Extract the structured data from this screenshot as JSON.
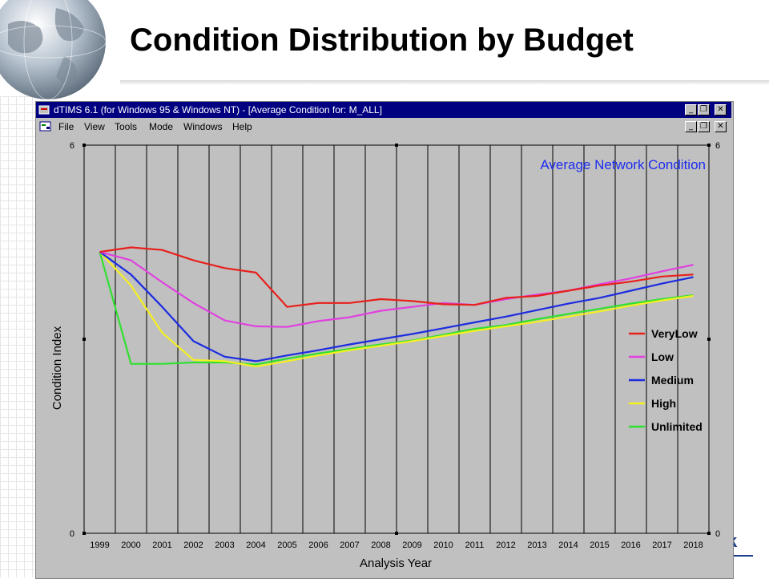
{
  "slide": {
    "title": "Condition Distribution by Budget",
    "logo_fragment": "k"
  },
  "window": {
    "title": "dTIMS 6.1 (for Windows 95 & Windows NT) - [Average Condition for: M_ALL]",
    "buttons": {
      "minimize": "_",
      "restore": "❐",
      "close": "✕"
    },
    "menu": [
      "File",
      "View",
      "Tools",
      "Mode",
      "Windows",
      "Help"
    ]
  },
  "colors": {
    "titlebar": "#000080",
    "chart_bg": "#c0c0c0",
    "VeryLow": "#e8201c",
    "Low": "#e040e0",
    "Medium": "#1c2ce0",
    "High": "#f4f020",
    "Unlimited": "#30e030",
    "annotation": "#1c2cf0"
  },
  "chart_data": {
    "type": "line",
    "annotation": "Average Network Condition",
    "xlabel": "Analysis Year",
    "ylabel": "Condition Index",
    "ylim": [
      0,
      6
    ],
    "yticks_left": [
      "0",
      "6"
    ],
    "yticks_right": [
      "0",
      "6"
    ],
    "x": [
      "1999",
      "2000",
      "2001",
      "2002",
      "2003",
      "2004",
      "2005",
      "2006",
      "2007",
      "2008",
      "2009",
      "2010",
      "2011",
      "2012",
      "2013",
      "2014",
      "2015",
      "2016",
      "2017",
      "2018"
    ],
    "legend_position": "right",
    "grid": true,
    "series": [
      {
        "name": "VeryLow",
        "values": [
          4.35,
          4.42,
          4.38,
          4.22,
          4.1,
          4.03,
          3.5,
          3.56,
          3.56,
          3.62,
          3.59,
          3.54,
          3.53,
          3.64,
          3.67,
          3.75,
          3.83,
          3.89,
          3.97,
          4.0
        ]
      },
      {
        "name": "Low",
        "values": [
          4.35,
          4.22,
          3.88,
          3.56,
          3.29,
          3.2,
          3.19,
          3.28,
          3.34,
          3.44,
          3.5,
          3.56,
          3.53,
          3.62,
          3.69,
          3.75,
          3.85,
          3.94,
          4.05,
          4.15
        ]
      },
      {
        "name": "Medium",
        "values": [
          4.35,
          4.0,
          3.5,
          2.97,
          2.73,
          2.66,
          2.75,
          2.83,
          2.92,
          3.0,
          3.08,
          3.17,
          3.26,
          3.35,
          3.45,
          3.55,
          3.64,
          3.75,
          3.86,
          3.96
        ]
      },
      {
        "name": "High",
        "values": [
          4.35,
          3.83,
          3.1,
          2.68,
          2.66,
          2.58,
          2.66,
          2.75,
          2.83,
          2.9,
          2.97,
          3.05,
          3.13,
          3.2,
          3.27,
          3.35,
          3.43,
          3.52,
          3.6,
          3.67
        ]
      },
      {
        "name": "Unlimited",
        "values": [
          4.35,
          2.62,
          2.62,
          2.64,
          2.64,
          2.61,
          2.7,
          2.78,
          2.85,
          2.92,
          2.98,
          3.07,
          3.16,
          3.22,
          3.31,
          3.39,
          3.47,
          3.55,
          3.62,
          3.68
        ]
      }
    ]
  }
}
